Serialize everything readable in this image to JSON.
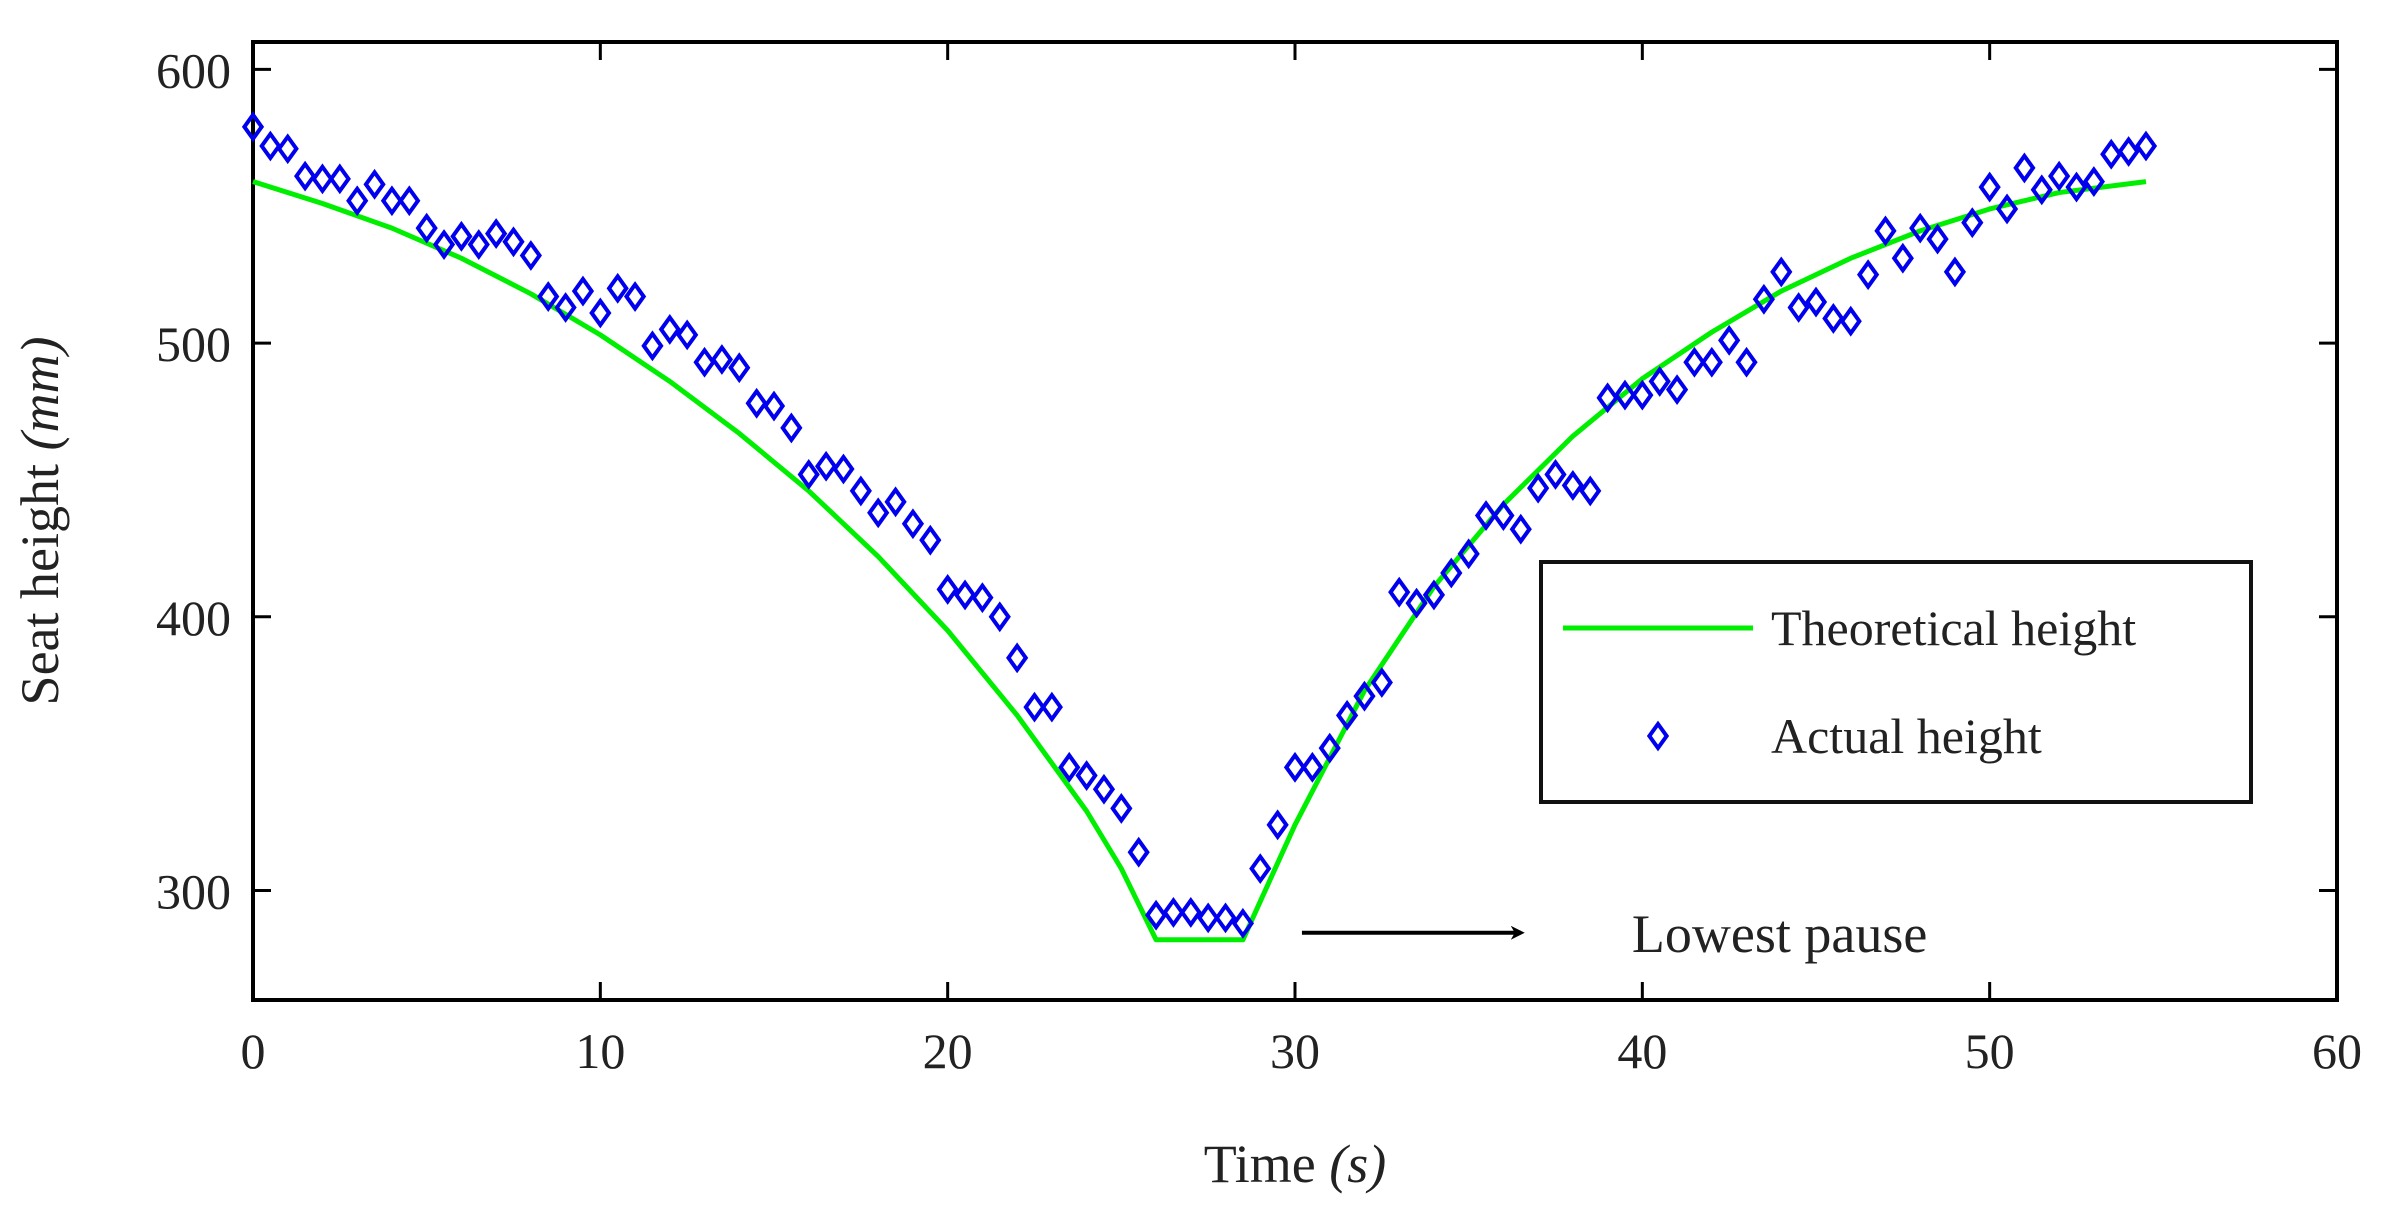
{
  "chart_data": {
    "type": "line",
    "title": "",
    "xlabel": "Time",
    "xlabel_unit": "(s)",
    "ylabel": "Seat height",
    "ylabel_unit": "(mm)",
    "xlim": [
      0,
      60
    ],
    "ylim": [
      260,
      610
    ],
    "xticks": [
      0,
      10,
      20,
      30,
      40,
      50,
      60
    ],
    "yticks": [
      300,
      400,
      500,
      600
    ],
    "grid": false,
    "colors": {
      "theoretical": "#00ee00",
      "actual": "#0000ee",
      "axis": "#000000",
      "annotation": "#000000"
    },
    "legend": {
      "position": "right",
      "entries": [
        {
          "label": "Theoretical height",
          "marker": "line",
          "series": "theoretical"
        },
        {
          "label": "Actual height",
          "marker": "diamond",
          "series": "actual"
        }
      ]
    },
    "series": [
      {
        "name": "Theoretical height",
        "key": "theoretical",
        "style": "line",
        "x": [
          0,
          2,
          4,
          6,
          8,
          10,
          12,
          14,
          16,
          18,
          20,
          22,
          24,
          25,
          26,
          28.5,
          29,
          30,
          32,
          34,
          36,
          38,
          40,
          42,
          44,
          46,
          48,
          50,
          52,
          54.5
        ],
        "y": [
          559,
          551,
          542,
          531,
          518,
          503,
          486,
          467,
          446,
          422,
          395,
          364,
          329,
          308,
          282,
          282,
          296,
          324,
          373,
          411,
          441,
          466,
          487,
          504,
          519,
          531,
          541,
          549,
          555,
          559
        ]
      },
      {
        "name": "Actual height",
        "key": "actual",
        "style": "diamond",
        "x": [
          0,
          0.5,
          1,
          1.5,
          2,
          2.5,
          3,
          3.5,
          4,
          4.5,
          5,
          5.5,
          6,
          6.5,
          7,
          7.5,
          8,
          8.5,
          9,
          9.5,
          10,
          10.5,
          11,
          11.5,
          12,
          12.5,
          13,
          13.5,
          14,
          14.5,
          15,
          15.5,
          16,
          16.5,
          17,
          17.5,
          18,
          18.5,
          19,
          19.5,
          20,
          20.5,
          21,
          21.5,
          22,
          22.5,
          23,
          23.5,
          24,
          24.5,
          25,
          25.5,
          26,
          26.5,
          27,
          27.5,
          28,
          28.5,
          29,
          29.5,
          30,
          30.5,
          31,
          31.5,
          32,
          32.5,
          33,
          33.5,
          34,
          34.5,
          35,
          35.5,
          36,
          36.5,
          37,
          37.5,
          38,
          38.5,
          39,
          39.5,
          40,
          40.5,
          41,
          41.5,
          42,
          42.5,
          43,
          43.5,
          44,
          44.5,
          45,
          45.5,
          46,
          46.5,
          47,
          47.5,
          48,
          48.5,
          49,
          49.5,
          50,
          50.5,
          51,
          51.5,
          52,
          52.5,
          53,
          53.5,
          54,
          54.5
        ],
        "y": [
          579,
          572,
          571,
          561,
          560,
          560,
          552,
          558,
          552,
          552,
          542,
          536,
          539,
          536,
          540,
          537,
          532,
          517,
          513,
          519,
          511,
          520,
          517,
          499,
          505,
          503,
          493,
          494,
          491,
          478,
          477,
          469,
          452,
          455,
          454,
          446,
          438,
          442,
          434,
          428,
          410,
          408,
          407,
          400,
          385,
          367,
          367,
          345,
          342,
          337,
          330,
          314,
          291,
          292,
          292,
          290,
          290,
          288,
          308,
          324,
          345,
          345,
          352,
          364,
          371,
          376,
          409,
          405,
          408,
          416,
          423,
          437,
          437,
          432,
          447,
          452,
          448,
          446,
          480,
          481,
          481,
          486,
          483,
          493,
          493,
          501,
          493,
          516,
          526,
          513,
          515,
          509,
          508,
          525,
          541,
          531,
          542,
          538,
          526,
          544,
          557,
          549,
          564,
          556,
          561,
          557,
          559,
          569,
          570,
          572
        ]
      }
    ],
    "annotations": [
      {
        "text": "Lowest pause",
        "arrow_from": [
          30.2,
          282
        ],
        "arrow_to": [
          36.5,
          282
        ]
      }
    ]
  }
}
